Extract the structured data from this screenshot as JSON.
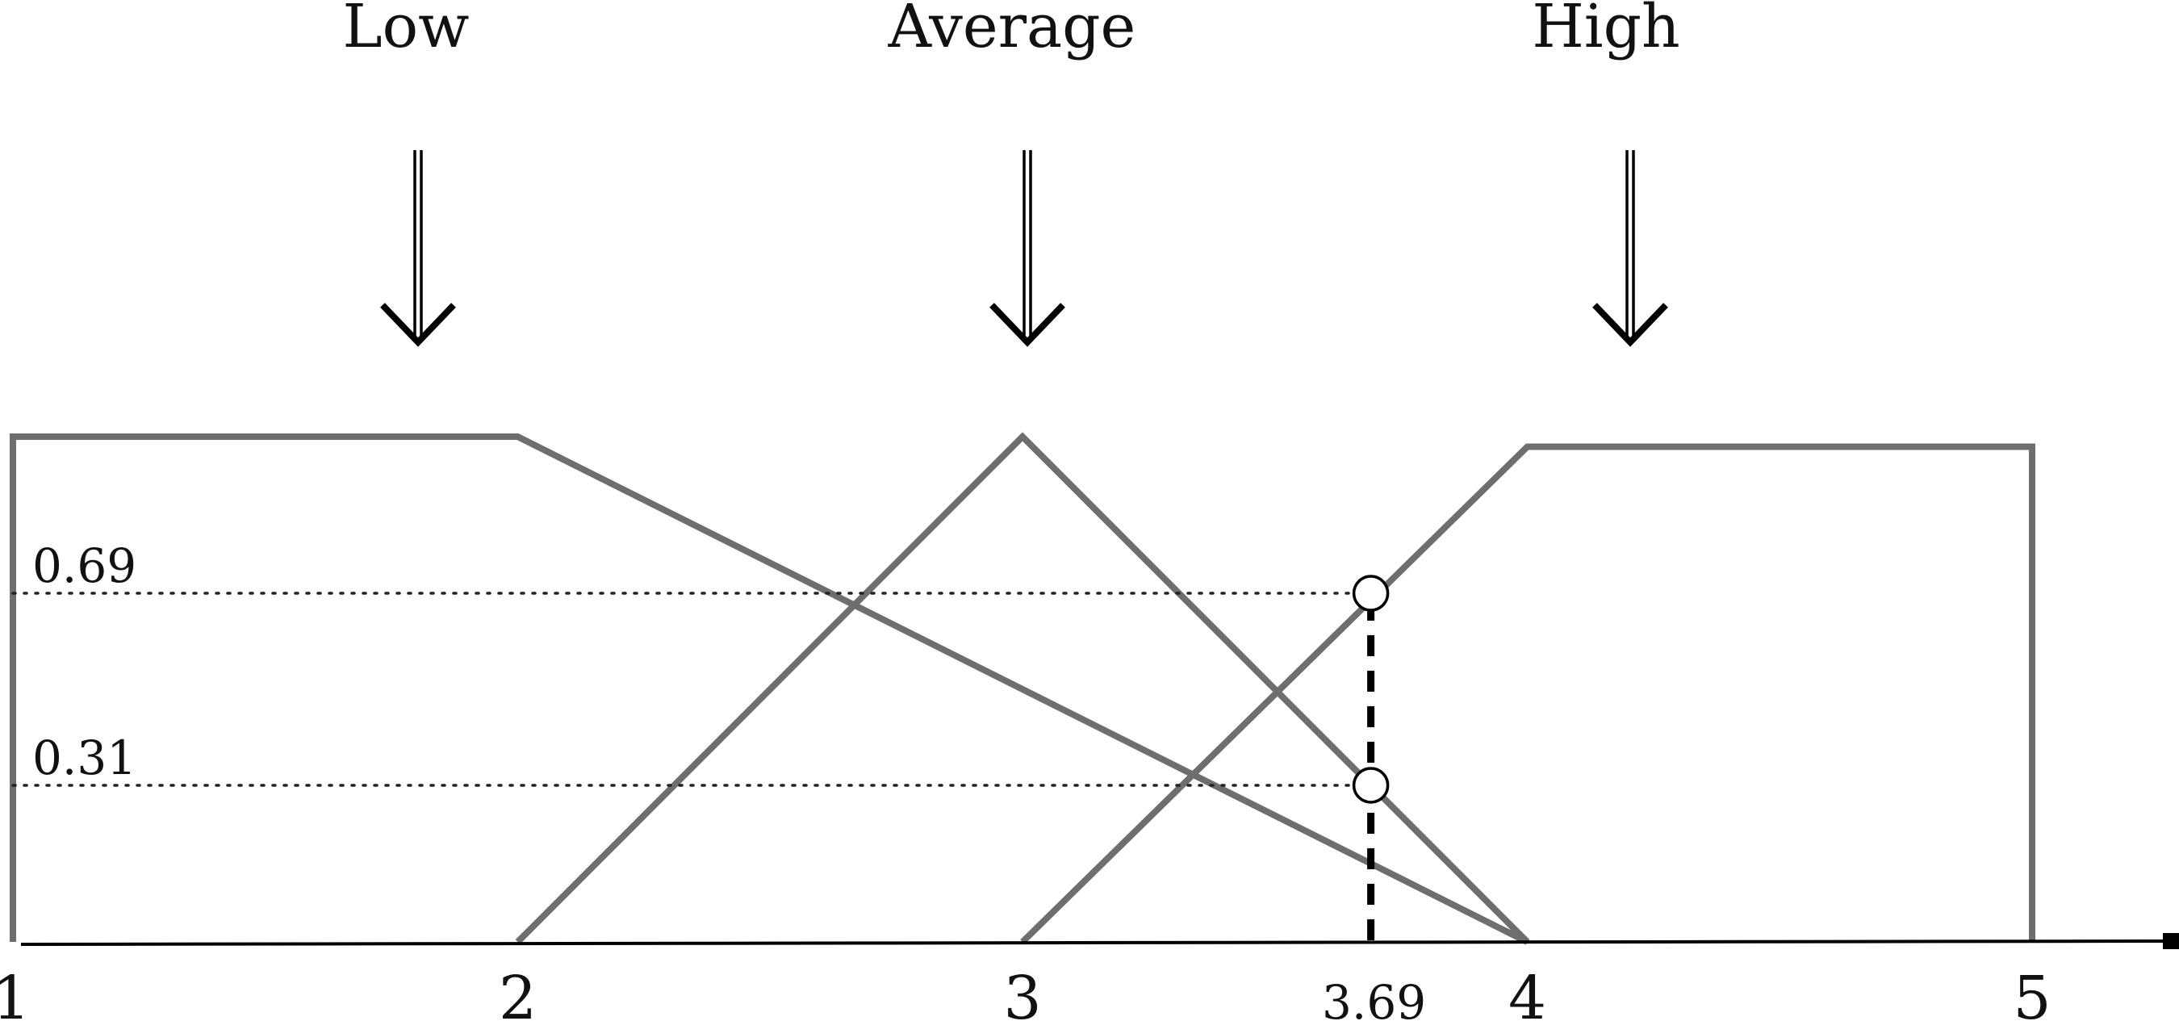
{
  "diagram": {
    "category_labels": [
      {
        "id": "low",
        "text": "Low",
        "center_x_value": 1.8
      },
      {
        "id": "average",
        "text": "Average",
        "center_x_value": 3.0
      },
      {
        "id": "high",
        "text": "High",
        "center_x_value": 4.2
      }
    ],
    "axis": {
      "ticks": [
        {
          "value": 1,
          "label": "1"
        },
        {
          "value": 2,
          "label": "2"
        },
        {
          "value": 3,
          "label": "3"
        },
        {
          "value": 4,
          "label": "4"
        },
        {
          "value": 5,
          "label": "5"
        }
      ],
      "marker": {
        "value": 3.69,
        "label": "3.69"
      }
    },
    "membership_functions": [
      {
        "name": "low",
        "points": [
          [
            1,
            0
          ],
          [
            1,
            1
          ],
          [
            2,
            1
          ],
          [
            4,
            0
          ]
        ]
      },
      {
        "name": "average",
        "points": [
          [
            2,
            0
          ],
          [
            3,
            1
          ],
          [
            4,
            0
          ]
        ]
      },
      {
        "name": "high",
        "points": [
          [
            3,
            0
          ],
          [
            4,
            0.98
          ],
          [
            5,
            0.98
          ],
          [
            5,
            0
          ]
        ]
      }
    ],
    "levels": [
      {
        "value": 0.69,
        "label": "0.69"
      },
      {
        "value": 0.31,
        "label": "0.31"
      }
    ],
    "colors": {
      "curve": "#6e6e6e",
      "axis": "#000000",
      "text": "#111111"
    }
  }
}
